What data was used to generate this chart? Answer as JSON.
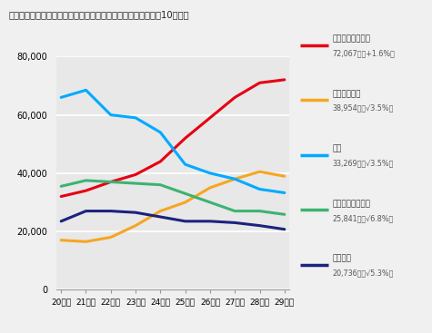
{
  "title": "《参考》民事上の個別労働紛争｜主な相談内容別の件数推移（10年間）",
  "years": [
    "20年度",
    "21年度",
    "22年度",
    "23年度",
    "24年度",
    "25年度",
    "26年度",
    "27年度",
    "28年度",
    "29年度"
  ],
  "series": [
    {
      "name": "いじめ・嫌がらせ",
      "name2": "72,067件（+1.6%）",
      "color": "#e60012",
      "values": [
        32000,
        34000,
        37000,
        39500,
        44000,
        52000,
        59000,
        66000,
        71000,
        72067
      ]
    },
    {
      "name": "自己都合退職",
      "name2": "38,954件（√3.5%）",
      "color": "#f5a623",
      "values": [
        17000,
        16500,
        18000,
        22000,
        27000,
        30000,
        35000,
        38000,
        40500,
        38954
      ]
    },
    {
      "name": "解雇",
      "name2": "33,269件（√3.5%）",
      "color": "#00aaff",
      "values": [
        66000,
        68500,
        60000,
        59000,
        54000,
        43000,
        40000,
        38000,
        34500,
        33269
      ]
    },
    {
      "name": "労働条件の引下げ",
      "name2": "25,841件（√6.8%）",
      "color": "#3cb371",
      "values": [
        35500,
        37500,
        37000,
        36500,
        36000,
        33000,
        30000,
        27000,
        27000,
        25841
      ]
    },
    {
      "name": "退職勧奪",
      "name2": "20,736件（√5.3%）",
      "color": "#1a237e",
      "values": [
        23500,
        27000,
        27000,
        26500,
        25000,
        23500,
        23500,
        23000,
        22000,
        20736
      ]
    }
  ],
  "ylim": [
    0,
    80000
  ],
  "yticks": [
    0,
    20000,
    40000,
    60000,
    80000
  ],
  "background_color": "#e8e8e8",
  "outer_background": "#f0f0f0"
}
